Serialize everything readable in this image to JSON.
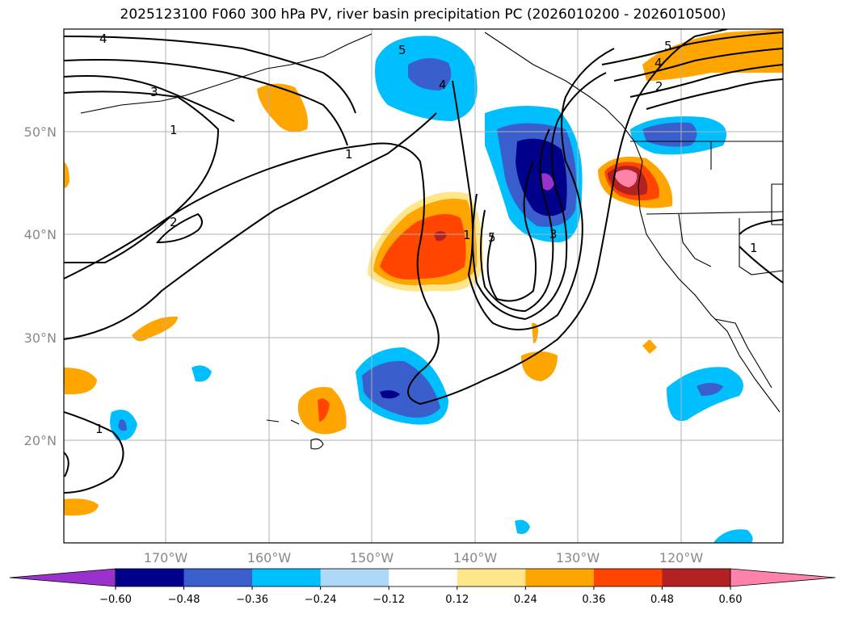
{
  "title": "2025123100 F060 300 hPa PV, river basin precipitation PC (2026010200 - 2026010500)",
  "latitude_labels": [
    "50°N",
    "40°N",
    "30°N",
    "20°N"
  ],
  "longitude_labels": [
    "170°W",
    "160°W",
    "150°W",
    "140°W",
    "130°W",
    "120°W"
  ],
  "colorbar": {
    "ticks": [
      "−0.60",
      "−0.48",
      "−0.36",
      "−0.24",
      "−0.12",
      "0.12",
      "0.24",
      "0.36",
      "0.48",
      "0.60"
    ],
    "colors": [
      "#9932cc",
      "#00008b",
      "#3a5fcd",
      "#00bfff",
      "#add8f7",
      "#ffffff",
      "#ffe68a",
      "#ffa500",
      "#ff4500",
      "#b22222",
      "#ff82ab"
    ]
  },
  "contour_labels": [
    "4",
    "3",
    "1",
    "1",
    "2",
    "5",
    "4",
    "1",
    "5",
    "3",
    "5",
    "4",
    "2",
    "1",
    "1"
  ],
  "colors": {
    "purple": "#9932cc",
    "navy": "#00008b",
    "royal": "#3a5fcd",
    "cyan": "#00bfff",
    "light_blue": "#add8f7",
    "yellow": "#ffe68a",
    "orange": "#ffa500",
    "red_orange": "#ff4500",
    "dark_red": "#b22222",
    "pink": "#ff82ab"
  }
}
